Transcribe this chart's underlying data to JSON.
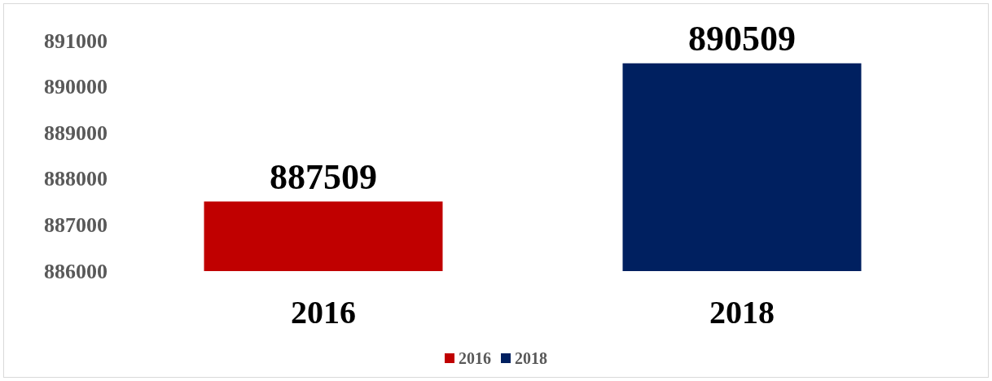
{
  "chart_data": {
    "type": "bar",
    "categories": [
      "2016",
      "2018"
    ],
    "series": [
      {
        "name": "2016",
        "color": "#c00000",
        "values": [
          887509,
          null
        ]
      },
      {
        "name": "2018",
        "color": "#002060",
        "values": [
          null,
          890509
        ]
      }
    ],
    "ylim": [
      886000,
      891000
    ],
    "yticks": [
      886000,
      887000,
      888000,
      889000,
      890000,
      891000
    ],
    "data_labels": true,
    "grid": false,
    "legend": "bottom"
  }
}
